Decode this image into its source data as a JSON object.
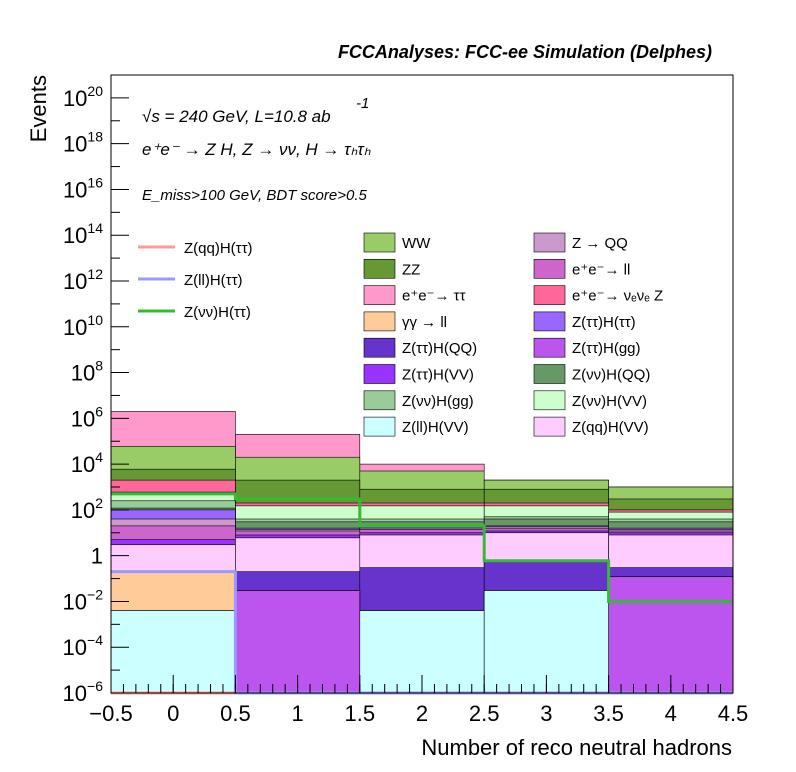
{
  "chart_data": {
    "type": "stacked-histogram",
    "title": "FCCAnalyses: FCC-ee Simulation (Delphes)",
    "xlabel": "Number of reco neutral hadrons",
    "ylabel": "Events",
    "xlim": [
      -0.5,
      4.5
    ],
    "ylim": [
      1e-06,
      1e+21
    ],
    "yscale": "log",
    "bins": [
      -0.5,
      0.5,
      1.5,
      2.5,
      3.5,
      4.5
    ],
    "x_ticks": [
      "−0.5",
      "0",
      "0.5",
      "1",
      "1.5",
      "2",
      "2.5",
      "3",
      "3.5",
      "4",
      "4.5"
    ],
    "y_ticks": [
      {
        "base": "10",
        "exp": "−6",
        "value": 1e-06
      },
      {
        "base": "10",
        "exp": "−4",
        "value": 0.0001
      },
      {
        "base": "10",
        "exp": "−2",
        "value": 0.01
      },
      {
        "base": "1",
        "exp": "",
        "value": 1
      },
      {
        "base": "10",
        "exp": "2",
        "value": 100.0
      },
      {
        "base": "10",
        "exp": "4",
        "value": 10000.0
      },
      {
        "base": "10",
        "exp": "6",
        "value": 1000000.0
      },
      {
        "base": "10",
        "exp": "8",
        "value": 100000000.0
      },
      {
        "base": "10",
        "exp": "10",
        "value": 10000000000.0
      },
      {
        "base": "10",
        "exp": "12",
        "value": 1000000000000.0
      },
      {
        "base": "10",
        "exp": "14",
        "value": 100000000000000.0
      },
      {
        "base": "10",
        "exp": "16",
        "value": 1e+16
      },
      {
        "base": "10",
        "exp": "18",
        "value": 1e+18
      },
      {
        "base": "10",
        "exp": "20",
        "value": 1e+20
      }
    ],
    "annotations": {
      "energy": "√s = 240 GeV, L=10.8 ab",
      "energy_exp": "-1",
      "process": "e⁺e⁻ → Z H, Z → νν, H → τₕτₕ",
      "selection": "E_miss>100 GeV, BDT score>0.5"
    },
    "stack_layers": [
      {
        "name": "Z(ll)H(VV)",
        "color": "#ccffff",
        "cumulative": [
          0.004,
          1e-06,
          0.004,
          0.03,
          1e-06
        ]
      },
      {
        "name": "Z(ττ)H(gg)",
        "color": "#bb55ee",
        "cumulative": [
          0.004,
          0.03,
          0.004,
          0.03,
          0.12
        ]
      },
      {
        "name": "γγ → ll",
        "color": "#ffcc99",
        "cumulative": [
          0.2,
          0.03,
          0.004,
          0.03,
          0.12
        ]
      },
      {
        "name": "Z(ττ)H(QQ)",
        "color": "#6633cc",
        "cumulative": [
          0.2,
          0.2,
          0.3,
          0.6,
          0.3
        ]
      },
      {
        "name": "Z(qq)H(VV)",
        "color": "#ffccff",
        "cumulative": [
          3,
          6,
          8,
          10,
          8
        ]
      },
      {
        "name": "Z(ττ)H(VV)",
        "color": "#9933ff",
        "cumulative": [
          5,
          8,
          10,
          12,
          10
        ]
      },
      {
        "name": "e⁺e⁻ → ll",
        "color": "#cc66cc",
        "cumulative": [
          20,
          12,
          14,
          15,
          12
        ]
      },
      {
        "name": "Z → QQ",
        "color": "#cc99cc",
        "cumulative": [
          40,
          14,
          16,
          18,
          14
        ]
      },
      {
        "name": "Z(ττ)H(ττ)",
        "color": "#9966ff",
        "cumulative": [
          100,
          16,
          18,
          20,
          16
        ]
      },
      {
        "name": "Z(νν)H(QQ)",
        "color": "#669966",
        "cumulative": [
          120,
          30,
          30,
          40,
          30
        ]
      },
      {
        "name": "Z(νν)H(gg)",
        "color": "#99cc99",
        "cumulative": [
          250,
          40,
          40,
          50,
          40
        ]
      },
      {
        "name": "Z(νν)H(VV)",
        "color": "#ccffcc",
        "cumulative": [
          600,
          150,
          150,
          150,
          80
        ]
      },
      {
        "name": "e⁺e⁻ → νₑνₑ Z",
        "color": "#ff6699",
        "cumulative": [
          2000,
          200,
          200,
          200,
          100
        ]
      },
      {
        "name": "ZZ",
        "color": "#669933",
        "cumulative": [
          6000,
          2000,
          800,
          800,
          300
        ]
      },
      {
        "name": "WW",
        "color": "#99cc66",
        "cumulative": [
          60000,
          20000,
          5000,
          2000,
          1000
        ]
      },
      {
        "name": "e⁺e⁻ → ττ",
        "color": "#ff99cc",
        "cumulative": [
          2000000,
          200000,
          10000,
          2000,
          1000
        ]
      }
    ],
    "signal_lines": [
      {
        "name": "Z(qq)H(ττ)",
        "color": "#ff9999",
        "values": [
          1e-06,
          1e-06,
          1e-06,
          1e-06,
          1e-06
        ]
      },
      {
        "name": "Z(ll)H(ττ)",
        "color": "#9999ff",
        "values": [
          0.2,
          1e-06,
          1e-06,
          1e-06,
          1e-06
        ]
      },
      {
        "name": "Z(νν)H(ττ)",
        "color": "#33bb33",
        "values": [
          500,
          300,
          20,
          0.6,
          0.01
        ]
      }
    ],
    "legend": {
      "lines": [
        "Z(qq)H(ττ)",
        "Z(ll)H(ττ)",
        "Z(νν)H(ττ)"
      ],
      "col1": [
        "WW",
        "ZZ",
        "e⁺e⁻→ ττ",
        "γγ → ll",
        "Z(ττ)H(QQ)",
        "Z(ττ)H(VV)",
        "Z(νν)H(gg)",
        "Z(ll)H(VV)"
      ],
      "col2": [
        "Z → QQ",
        "e⁺e⁻→ ll",
        "e⁺e⁻→ νₑνₑ Z",
        "Z(ττ)H(ττ)",
        "Z(ττ)H(gg)",
        "Z(νν)H(QQ)",
        "Z(νν)H(VV)",
        "Z(qq)H(VV)"
      ],
      "col1_colors": [
        "#99cc66",
        "#669933",
        "#ff99cc",
        "#ffcc99",
        "#6633cc",
        "#9933ff",
        "#99cc99",
        "#ccffff"
      ],
      "col2_colors": [
        "#cc99cc",
        "#cc66cc",
        "#ff6699",
        "#9966ff",
        "#bb55ee",
        "#669966",
        "#ccffcc",
        "#ffccff"
      ],
      "placement": "top"
    }
  }
}
